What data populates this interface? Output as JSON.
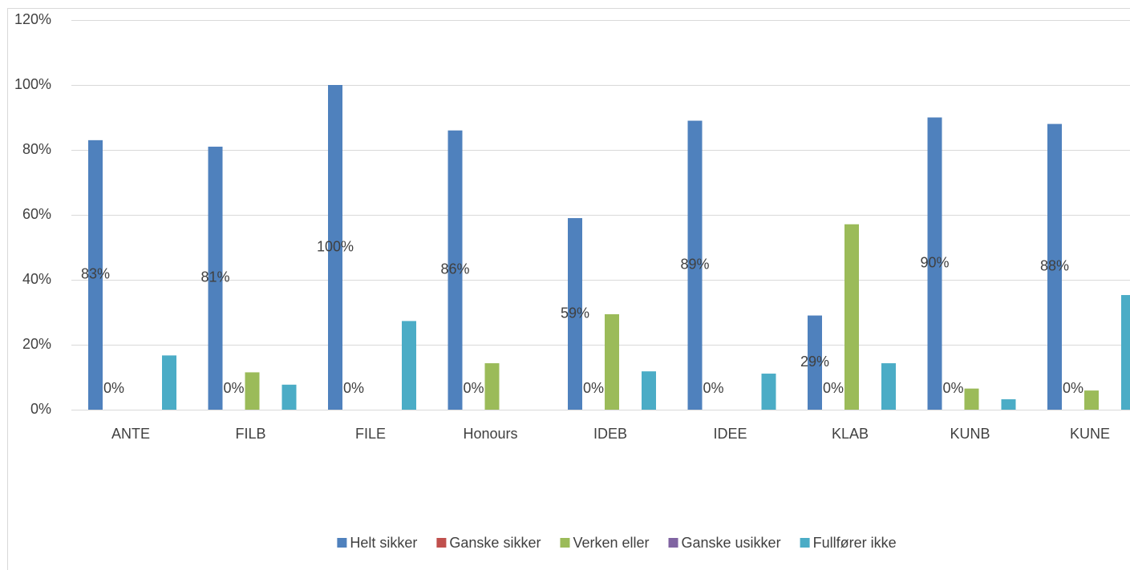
{
  "chart_data": {
    "type": "bar",
    "categories": [
      "ANTE",
      "FILB",
      "FILE",
      "Honours",
      "IDEB",
      "IDEE",
      "KLAB",
      "KUNB",
      "KUNE"
    ],
    "series": [
      {
        "name": "Helt sikker",
        "color": "#4f81bd",
        "values": [
          83,
          81,
          100,
          86,
          59,
          89,
          29,
          90,
          88
        ],
        "value_labels": [
          "83%",
          "81%",
          "100%",
          "86%",
          "59%",
          "89%",
          "29%",
          "90%",
          "88%"
        ]
      },
      {
        "name": "Ganske sikker",
        "color": "#c0504d",
        "values": [
          0,
          0,
          0,
          0,
          0,
          0,
          0,
          0,
          0
        ],
        "value_labels": [
          "0%",
          "0%",
          "0%",
          "0%",
          "0%",
          "0%",
          "0%",
          "0%",
          "0%"
        ]
      },
      {
        "name": "Verken eller",
        "color": "#9bbb59",
        "values": [
          0,
          11.5,
          0,
          14.3,
          29.4,
          0,
          57.1,
          6.5,
          5.9
        ]
      },
      {
        "name": "Ganske usikker",
        "color": "#8064a2",
        "values": [
          0,
          0,
          0,
          0,
          0,
          0,
          0,
          0,
          0
        ]
      },
      {
        "name": "Fullfører ikke",
        "color": "#4bacc6",
        "values": [
          16.7,
          7.7,
          27.3,
          0,
          11.8,
          11.1,
          14.3,
          3.2,
          35.3
        ]
      }
    ],
    "ylim": [
      0,
      120
    ],
    "yticks": [
      {
        "value": 0,
        "label": "0%"
      },
      {
        "value": 20,
        "label": "20%"
      },
      {
        "value": 40,
        "label": "40%"
      },
      {
        "value": 60,
        "label": "60%"
      },
      {
        "value": 80,
        "label": "80%"
      },
      {
        "value": 100,
        "label": "100%"
      },
      {
        "value": 120,
        "label": "120%"
      }
    ],
    "grid": true,
    "legend": "bottom"
  }
}
